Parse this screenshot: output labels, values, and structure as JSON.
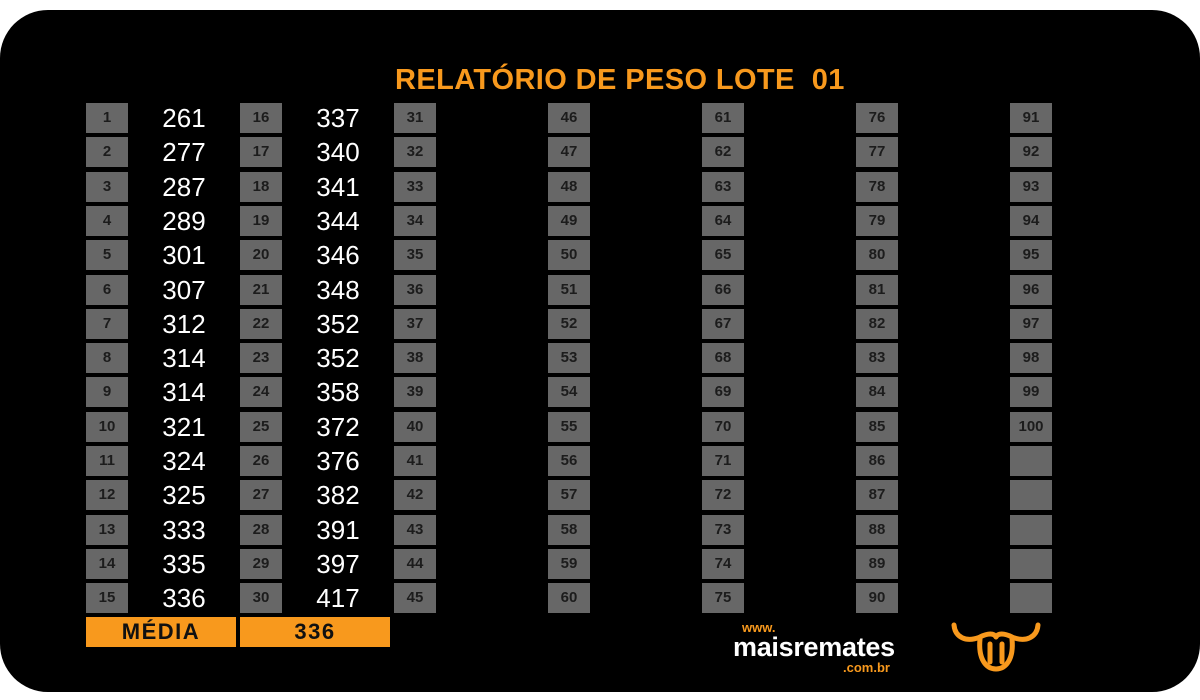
{
  "title": "RELATÓRIO DE PESO LOTE  01",
  "lots": [
    {
      "number": 1,
      "weight": 261
    },
    {
      "number": 2,
      "weight": 277
    },
    {
      "number": 3,
      "weight": 287
    },
    {
      "number": 4,
      "weight": 289
    },
    {
      "number": 5,
      "weight": 301
    },
    {
      "number": 6,
      "weight": 307
    },
    {
      "number": 7,
      "weight": 312
    },
    {
      "number": 8,
      "weight": 314
    },
    {
      "number": 9,
      "weight": 314
    },
    {
      "number": 10,
      "weight": 321
    },
    {
      "number": 11,
      "weight": 324
    },
    {
      "number": 12,
      "weight": 325
    },
    {
      "number": 13,
      "weight": 333
    },
    {
      "number": 14,
      "weight": 335
    },
    {
      "number": 15,
      "weight": 336
    },
    {
      "number": 16,
      "weight": 337
    },
    {
      "number": 17,
      "weight": 340
    },
    {
      "number": 18,
      "weight": 341
    },
    {
      "number": 19,
      "weight": 344
    },
    {
      "number": 20,
      "weight": 346
    },
    {
      "number": 21,
      "weight": 348
    },
    {
      "number": 22,
      "weight": 352
    },
    {
      "number": 23,
      "weight": 352
    },
    {
      "number": 24,
      "weight": 358
    },
    {
      "number": 25,
      "weight": 372
    },
    {
      "number": 26,
      "weight": 376
    },
    {
      "number": 27,
      "weight": 382
    },
    {
      "number": 28,
      "weight": 391
    },
    {
      "number": 29,
      "weight": 397
    },
    {
      "number": 30,
      "weight": 417
    },
    {
      "number": 31
    },
    {
      "number": 32
    },
    {
      "number": 33
    },
    {
      "number": 34
    },
    {
      "number": 35
    },
    {
      "number": 36
    },
    {
      "number": 37
    },
    {
      "number": 38
    },
    {
      "number": 39
    },
    {
      "number": 40
    },
    {
      "number": 41
    },
    {
      "number": 42
    },
    {
      "number": 43
    },
    {
      "number": 44
    },
    {
      "number": 45
    },
    {
      "number": 46
    },
    {
      "number": 47
    },
    {
      "number": 48
    },
    {
      "number": 49
    },
    {
      "number": 50
    },
    {
      "number": 51
    },
    {
      "number": 52
    },
    {
      "number": 53
    },
    {
      "number": 54
    },
    {
      "number": 55
    },
    {
      "number": 56
    },
    {
      "number": 57
    },
    {
      "number": 58
    },
    {
      "number": 59
    },
    {
      "number": 60
    },
    {
      "number": 61
    },
    {
      "number": 62
    },
    {
      "number": 63
    },
    {
      "number": 64
    },
    {
      "number": 65
    },
    {
      "number": 66
    },
    {
      "number": 67
    },
    {
      "number": 68
    },
    {
      "number": 69
    },
    {
      "number": 70
    },
    {
      "number": 71
    },
    {
      "number": 72
    },
    {
      "number": 73
    },
    {
      "number": 74
    },
    {
      "number": 75
    },
    {
      "number": 76
    },
    {
      "number": 77
    },
    {
      "number": 78
    },
    {
      "number": 79
    },
    {
      "number": 80
    },
    {
      "number": 81
    },
    {
      "number": 82
    },
    {
      "number": 83
    },
    {
      "number": 84
    },
    {
      "number": 85
    },
    {
      "number": 86
    },
    {
      "number": 87
    },
    {
      "number": 88
    },
    {
      "number": 89
    },
    {
      "number": 90
    },
    {
      "number": 91
    },
    {
      "number": 92
    },
    {
      "number": 93
    },
    {
      "number": 94
    },
    {
      "number": 95
    },
    {
      "number": 96
    },
    {
      "number": 97
    },
    {
      "number": 98
    },
    {
      "number": 99
    },
    {
      "number": 100
    }
  ],
  "average": {
    "label": "MÉDIA",
    "value": "336"
  },
  "brand": {
    "www": "www.",
    "name": "maisremates",
    "domain": ".com.br"
  },
  "icons": {
    "logo": "bull-head-icon"
  },
  "colors": {
    "accent": "#f8991d",
    "lot_box": "#676767",
    "background": "#000000",
    "page": "#ffffff"
  }
}
